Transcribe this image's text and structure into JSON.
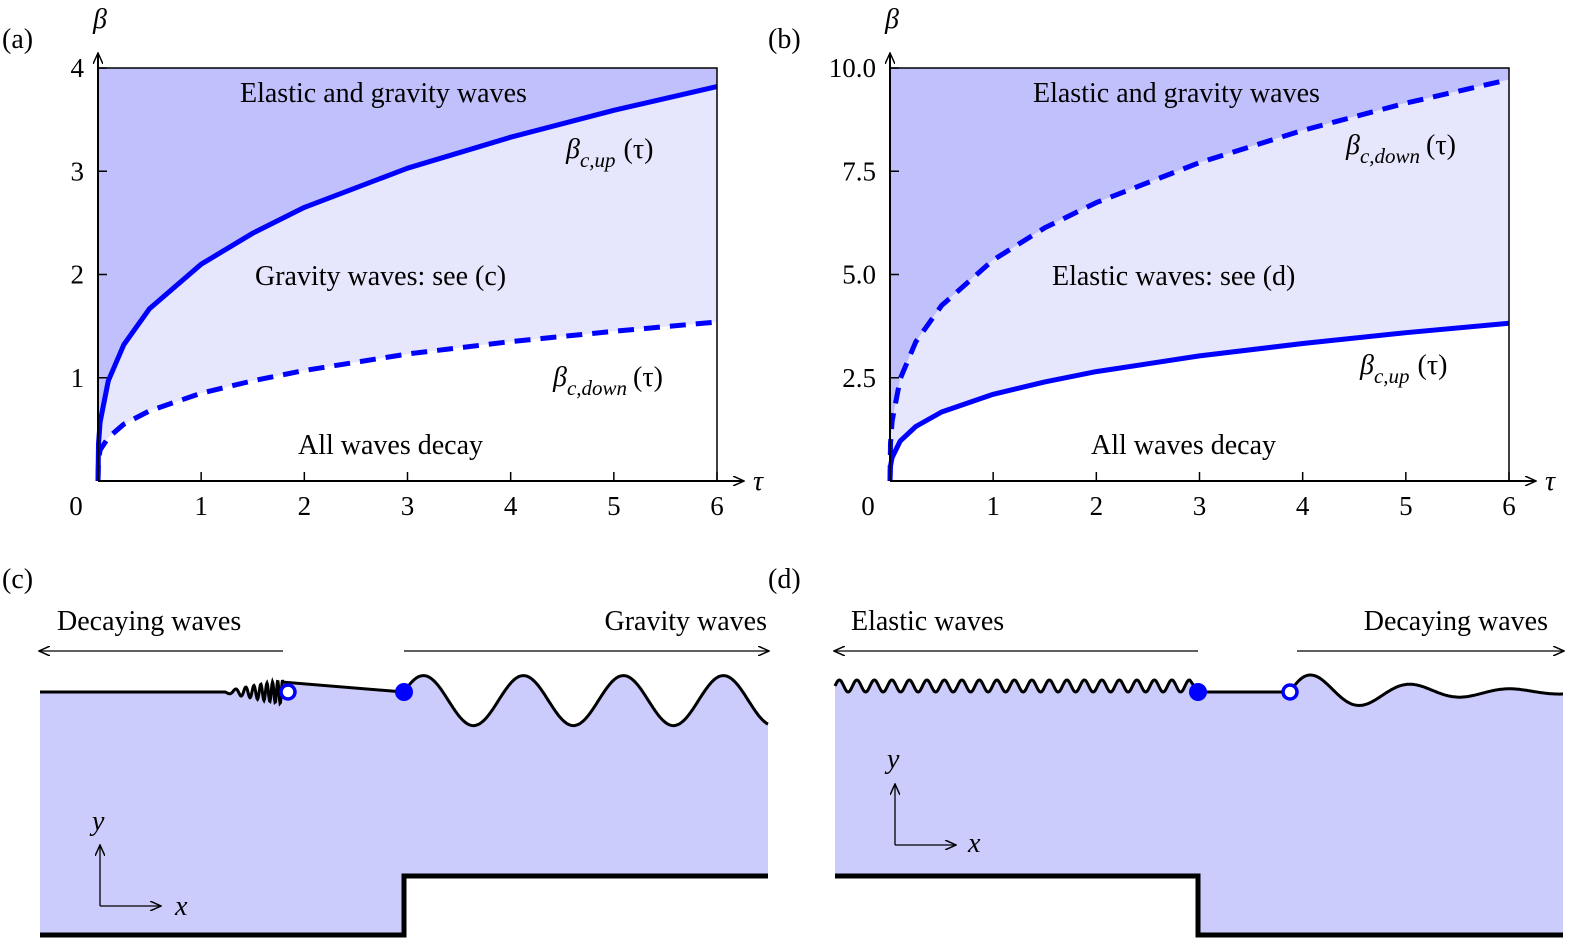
{
  "colors": {
    "curve": "#0000ff",
    "dark_region": "#c0c0fc",
    "light_region": "#e6e6fc",
    "fluid": "#ccccfc"
  },
  "chart_data": [
    {
      "panel": "(a)",
      "type": "area",
      "xlabel": "τ",
      "ylabel": "β",
      "xlim": [
        0,
        6
      ],
      "ylim": [
        0,
        4
      ],
      "xticks": [
        "0",
        "1",
        "2",
        "3",
        "4",
        "5",
        "6"
      ],
      "yticks": [
        "1",
        "2",
        "3",
        "4"
      ],
      "x": [
        0,
        0.005,
        0.02,
        0.1,
        0.25,
        0.5,
        1,
        1.5,
        2,
        3,
        4,
        5,
        6
      ],
      "series": [
        {
          "name": "β_c,up(τ)",
          "style": "solid",
          "values": [
            0,
            0.36,
            0.57,
            0.97,
            1.32,
            1.67,
            2.1,
            2.4,
            2.65,
            3.03,
            3.33,
            3.59,
            3.82
          ]
        },
        {
          "name": "β_c,down(τ)",
          "style": "dashed",
          "values": [
            0,
            0.2,
            0.3,
            0.42,
            0.55,
            0.68,
            0.85,
            0.97,
            1.07,
            1.23,
            1.35,
            1.45,
            1.54
          ]
        }
      ],
      "regions": {
        "top": "Elastic and gravity waves",
        "middle": "Gravity waves: see (c)",
        "bottom": "All waves decay"
      },
      "curve_labels": {
        "up_sub": "c,up",
        "down_sub": "c,down",
        "arg": "(τ)",
        "beta": "β"
      }
    },
    {
      "panel": "(b)",
      "type": "area",
      "xlabel": "τ",
      "ylabel": "β",
      "xlim": [
        0,
        6
      ],
      "ylim": [
        0,
        10
      ],
      "xticks": [
        "0",
        "1",
        "2",
        "3",
        "4",
        "5",
        "6"
      ],
      "yticks": [
        "2.5",
        "5.0",
        "7.5",
        "10.0"
      ],
      "x": [
        0,
        0.005,
        0.02,
        0.1,
        0.25,
        0.5,
        1,
        1.5,
        2,
        3,
        4,
        5,
        6
      ],
      "series": [
        {
          "name": "β_c,up(τ)",
          "style": "solid",
          "values": [
            0,
            0.36,
            0.57,
            0.97,
            1.32,
            1.67,
            2.1,
            2.4,
            2.65,
            3.03,
            3.33,
            3.59,
            3.82
          ]
        },
        {
          "name": "β_c,down(τ)",
          "style": "dashed",
          "values": [
            0,
            0.91,
            1.45,
            2.48,
            3.37,
            4.25,
            5.35,
            6.13,
            6.74,
            7.71,
            8.49,
            9.15,
            9.72
          ]
        }
      ],
      "regions": {
        "top": "Elastic and gravity waves",
        "middle": "Elastic waves: see (d)",
        "bottom": "All waves decay"
      },
      "curve_labels": {
        "up_sub": "c,up",
        "down_sub": "c,down",
        "arg": "(τ)",
        "beta": "β"
      }
    }
  ],
  "panel_c": {
    "label": "(c)",
    "left": "Decaying waves",
    "right": "Gravity waves",
    "x": "x",
    "y": "y"
  },
  "panel_d": {
    "label": "(d)",
    "left": "Elastic waves",
    "right": "Decaying waves",
    "x": "x",
    "y": "y"
  },
  "origin_label": "0"
}
